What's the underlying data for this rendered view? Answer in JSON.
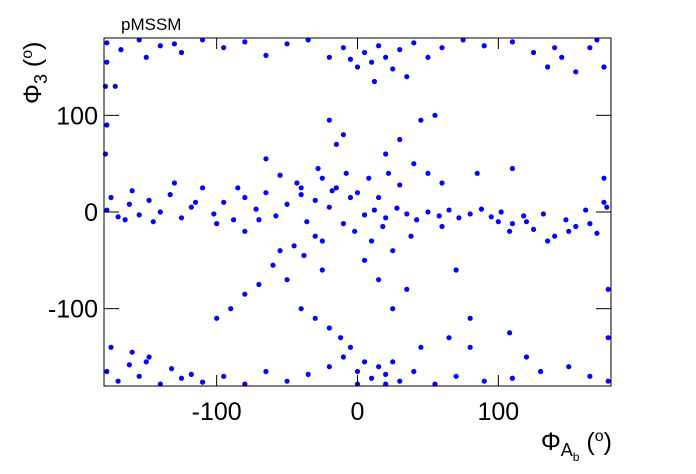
{
  "chart_data": {
    "type": "scatter",
    "title": "pMSSM",
    "x_label_parts": [
      "Φ",
      "A",
      "b",
      " (",
      "o",
      ")"
    ],
    "y_label_parts": [
      "Φ",
      "3",
      " (",
      "o",
      ")"
    ],
    "color": "#0000ff",
    "xlim": [
      -180,
      180
    ],
    "ylim": [
      -180,
      180
    ],
    "xticks": [
      -100,
      0,
      100
    ],
    "yticks": [
      -100,
      0,
      100
    ],
    "x": [
      -178,
      -170,
      -162,
      -155,
      -148,
      -140,
      -133,
      -125,
      -118,
      -110,
      -102,
      -95,
      -88,
      -80,
      -72,
      -65,
      -58,
      -50,
      -43,
      -36,
      -30,
      -25,
      -20,
      -15,
      -10,
      -5,
      -175,
      -160,
      -145,
      -130,
      -115,
      -100,
      -85,
      -70,
      -55,
      -40,
      -28,
      -18,
      -8,
      -165,
      5,
      12,
      20,
      28,
      35,
      42,
      50,
      58,
      65,
      72,
      80,
      88,
      95,
      102,
      110,
      118,
      125,
      132,
      140,
      148,
      155,
      162,
      170,
      177,
      120,
      135,
      150,
      165,
      175,
      108,
      0,
      8,
      15,
      22,
      30,
      -2,
      10,
      18,
      25,
      38,
      -178,
      -168,
      -155,
      -140,
      -125,
      -110,
      -95,
      -80,
      -65,
      -50,
      -35,
      -20,
      -10,
      0,
      5,
      10,
      15,
      20,
      25,
      30,
      40,
      50,
      60,
      75,
      90,
      110,
      125,
      135,
      145,
      155,
      165,
      175,
      -172,
      -150,
      -130,
      12,
      35,
      -5,
      140,
      170,
      -178,
      -170,
      -162,
      -155,
      -148,
      -140,
      -132,
      -125,
      -118,
      -110,
      -95,
      -80,
      -65,
      -50,
      -35,
      -20,
      -10,
      -5,
      0,
      5,
      10,
      15,
      20,
      25,
      30,
      40,
      55,
      70,
      90,
      110,
      130,
      150,
      165,
      178,
      -175,
      -160,
      0,
      20,
      120,
      -150,
      -100,
      -90,
      -80,
      -70,
      -60,
      -50,
      -45,
      -38,
      -30,
      -25,
      -55,
      -40,
      -30,
      -20,
      -12,
      20,
      30,
      40,
      50,
      60,
      45,
      55,
      65,
      70,
      80,
      35,
      25,
      15,
      5,
      -10,
      -20,
      -15,
      -40,
      -25,
      80,
      100,
      -65,
      -80,
      85,
      178,
      -179,
      -178,
      108,
      110,
      -179,
      175,
      -178,
      60,
      45,
      178
    ],
    "values": [
      2,
      -5,
      8,
      -3,
      12,
      0,
      18,
      -6,
      5,
      25,
      -2,
      10,
      -8,
      15,
      3,
      20,
      -4,
      8,
      30,
      -10,
      12,
      35,
      5,
      25,
      -12,
      15,
      15,
      22,
      -10,
      30,
      10,
      -12,
      25,
      -8,
      38,
      18,
      45,
      22,
      40,
      -8,
      -3,
      2,
      -6,
      4,
      -2,
      -8,
      0,
      -4,
      2,
      -6,
      -2,
      3,
      -5,
      0,
      -12,
      -4,
      -18,
      -2,
      -25,
      -8,
      -15,
      2,
      -22,
      5,
      -10,
      -30,
      -20,
      -12,
      10,
      -20,
      20,
      35,
      15,
      40,
      28,
      -20,
      -30,
      -15,
      -40,
      -25,
      175,
      168,
      178,
      172,
      165,
      178,
      170,
      176,
      162,
      174,
      178,
      160,
      170,
      150,
      165,
      155,
      172,
      160,
      148,
      168,
      175,
      160,
      170,
      178,
      172,
      176,
      165,
      150,
      160,
      145,
      170,
      150,
      130,
      160,
      174,
      135,
      140,
      158,
      170,
      178,
      -165,
      -175,
      -158,
      -170,
      -150,
      -178,
      -162,
      -172,
      -168,
      -176,
      -170,
      -178,
      -165,
      -175,
      -168,
      -160,
      -150,
      -140,
      -165,
      -155,
      -172,
      -160,
      -168,
      -155,
      -175,
      -165,
      -178,
      -170,
      -175,
      -172,
      -165,
      -160,
      -170,
      -175,
      -140,
      -145,
      -178,
      -178,
      -150,
      -155,
      -110,
      -100,
      -85,
      -75,
      -55,
      -70,
      -35,
      -45,
      -25,
      -30,
      -40,
      -100,
      -110,
      -120,
      -130,
      60,
      75,
      50,
      40,
      30,
      95,
      100,
      -130,
      -60,
      -110,
      -80,
      -100,
      -70,
      -50,
      80,
      95,
      70,
      25,
      -60,
      -140,
      -10,
      55,
      -20,
      40,
      -130,
      60,
      90,
      -125,
      45,
      130,
      35,
      155,
      -15,
      -140,
      -80
    ]
  }
}
